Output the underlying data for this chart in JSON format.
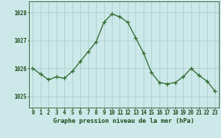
{
  "x": [
    0,
    1,
    2,
    3,
    4,
    5,
    6,
    7,
    8,
    9,
    10,
    11,
    12,
    13,
    14,
    15,
    16,
    17,
    18,
    19,
    20,
    21,
    22,
    23
  ],
  "y": [
    1026.0,
    1025.8,
    1025.6,
    1025.7,
    1025.65,
    1025.9,
    1026.25,
    1026.6,
    1026.95,
    1027.65,
    1027.95,
    1027.85,
    1027.65,
    1027.1,
    1026.55,
    1025.85,
    1025.5,
    1025.45,
    1025.5,
    1025.7,
    1026.0,
    1025.75,
    1025.55,
    1025.2
  ],
  "line_color": "#2d6a2d",
  "marker": "+",
  "marker_size": 4,
  "line_width": 1.0,
  "bg_color": "#cce8e8",
  "grid_color": "#aacccc",
  "xlabel": "Graphe pression niveau de la mer (hPa)",
  "yticks": [
    1025,
    1026,
    1027,
    1028
  ],
  "xticks": [
    0,
    1,
    2,
    3,
    4,
    5,
    6,
    7,
    8,
    9,
    10,
    11,
    12,
    13,
    14,
    15,
    16,
    17,
    18,
    19,
    20,
    21,
    22,
    23
  ],
  "ylim": [
    1024.6,
    1028.4
  ],
  "xlim": [
    -0.5,
    23.5
  ],
  "tick_color": "#1a4a1a",
  "tick_fontsize": 5.5,
  "label_fontsize": 6.5
}
